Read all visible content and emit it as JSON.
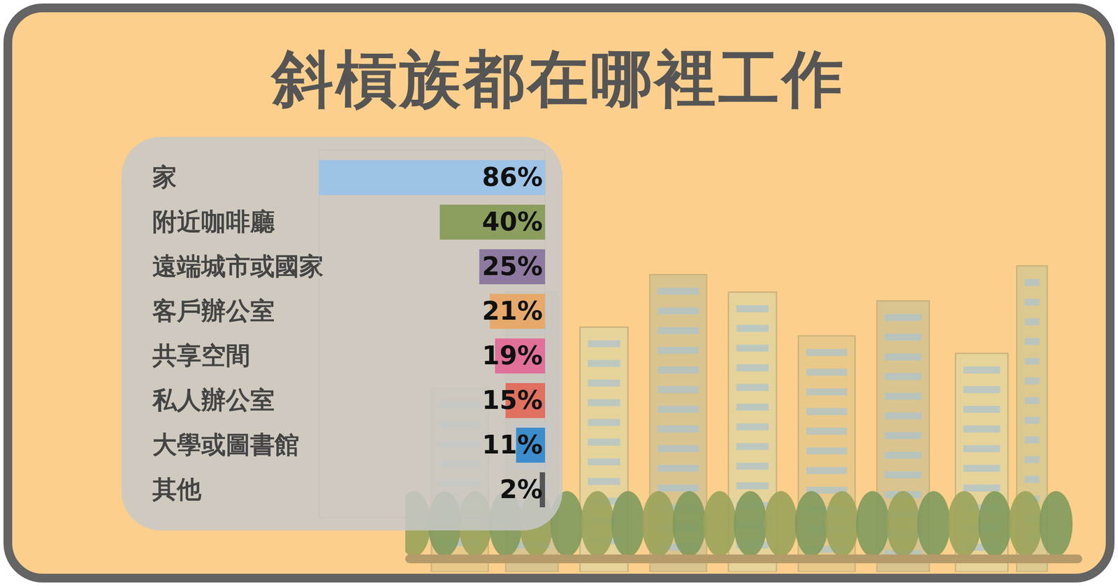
{
  "chart_data": {
    "type": "bar",
    "title": "斜槓族都在哪裡工作",
    "orientation": "horizontal",
    "categories": [
      "家",
      "附近咖啡廳",
      "遠端城市或國家",
      "客戶辦公室",
      "共享空間",
      "私人辦公室",
      "大學或圖書館",
      "其他"
    ],
    "values": [
      86,
      40,
      25,
      21,
      19,
      15,
      11,
      2
    ],
    "value_labels": [
      "86%",
      "40%",
      "25%",
      "21%",
      "19%",
      "15%",
      "11%",
      "2%"
    ],
    "colors": [
      "#9dc3e6",
      "#8c9e5e",
      "#8e7aa0",
      "#e6a96b",
      "#e07099",
      "#e0705f",
      "#3c8dcc",
      "#555555"
    ],
    "xlim": [
      0,
      86
    ],
    "data_labels": true,
    "tick_labels": "y"
  }
}
